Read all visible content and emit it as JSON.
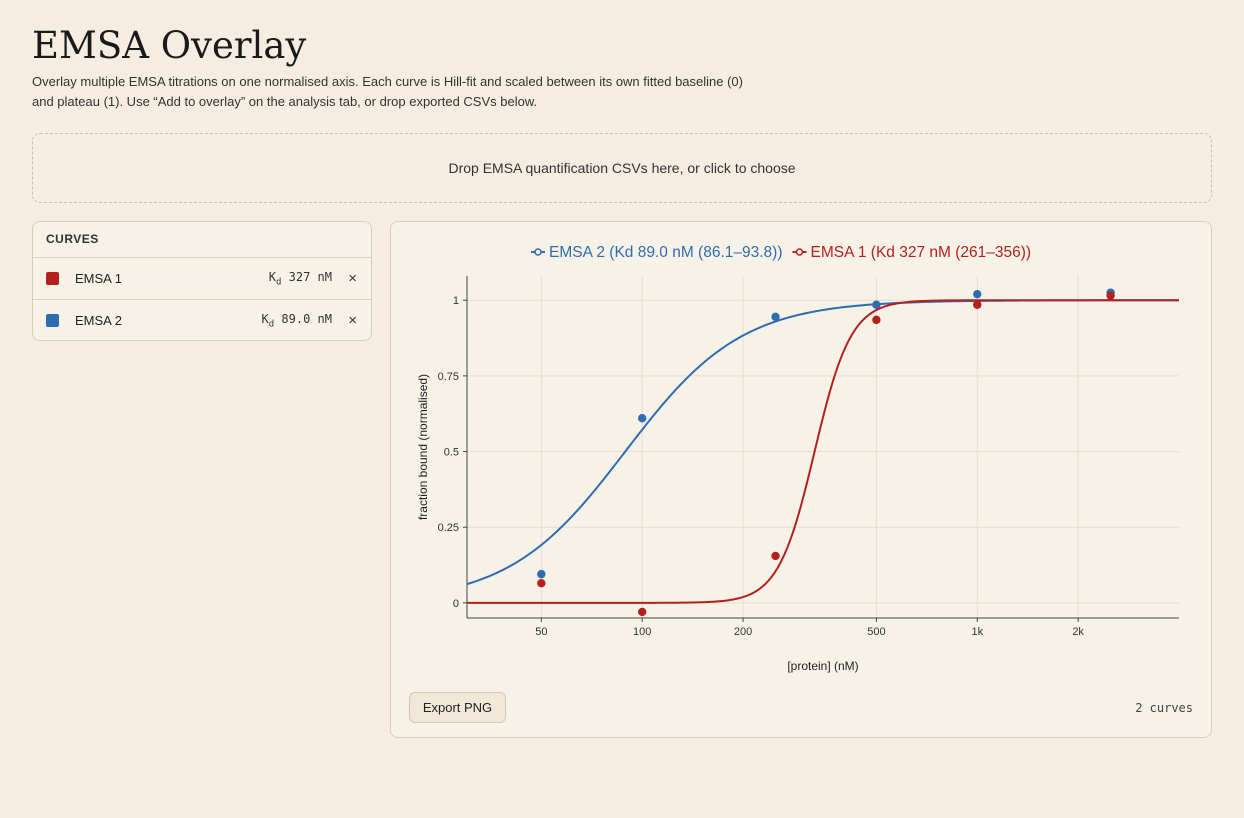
{
  "page": {
    "title": "EMSA Overlay",
    "description": "Overlay multiple EMSA titrations on one normalised axis. Each curve is Hill-fit and scaled between its own fitted baseline (0) and plateau (1). Use “Add to overlay” on the analysis tab, or drop exported CSVs below."
  },
  "dropzone": {
    "label": "Drop EMSA quantification CSVs here, or click to choose"
  },
  "curves_panel": {
    "header": "CURVES",
    "kd_symbol": "K",
    "kd_sub": "d",
    "remove_glyph": "×",
    "items": [
      {
        "name": "EMSA 1",
        "kd": "327 nM",
        "color": "#b5201e"
      },
      {
        "name": "EMSA 2",
        "kd": "89.0 nM",
        "color": "#2f6cb0"
      }
    ]
  },
  "chart_footer": {
    "export_label": "Export PNG",
    "count": "2 curves"
  },
  "chart_data": {
    "type": "scatter",
    "xlabel": "[protein] (nM)",
    "ylabel": "fraction bound (normalised)",
    "x_scale": "log",
    "xlim": [
      30,
      4000
    ],
    "ylim": [
      -0.05,
      1.08
    ],
    "x_ticks": [
      {
        "value": 50,
        "label": "50"
      },
      {
        "value": 100,
        "label": "100"
      },
      {
        "value": 200,
        "label": "200"
      },
      {
        "value": 500,
        "label": "500"
      },
      {
        "value": 1000,
        "label": "1k"
      },
      {
        "value": 2000,
        "label": "2k"
      }
    ],
    "y_ticks": [
      {
        "value": 0,
        "label": "0"
      },
      {
        "value": 0.25,
        "label": "0.25"
      },
      {
        "value": 0.5,
        "label": "0.5"
      },
      {
        "value": 0.75,
        "label": "0.75"
      },
      {
        "value": 1,
        "label": "1"
      }
    ],
    "grid": true,
    "legend_position": "top",
    "series": [
      {
        "name": "EMSA 2 (Kd 89.0 nM (86.1–93.8))",
        "color": "#2f6cb0",
        "kd": 89.0,
        "hill": 2.5,
        "points": [
          [
            50,
            0.095
          ],
          [
            100,
            0.61
          ],
          [
            250,
            0.945
          ],
          [
            500,
            0.985
          ],
          [
            1000,
            1.02
          ],
          [
            2500,
            1.025
          ]
        ]
      },
      {
        "name": "EMSA 1 (Kd 327 nM (261–356))",
        "color": "#b5201e",
        "kd": 327,
        "hill": 8,
        "points": [
          [
            50,
            0.065
          ],
          [
            100,
            -0.03
          ],
          [
            250,
            0.155
          ],
          [
            500,
            0.935
          ],
          [
            1000,
            0.985
          ],
          [
            2500,
            1.015
          ]
        ]
      }
    ]
  }
}
